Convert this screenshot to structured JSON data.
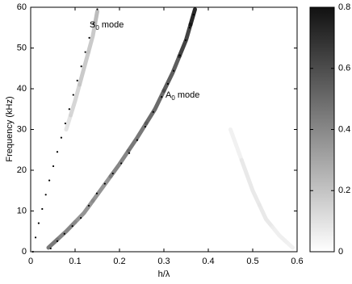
{
  "chart_data": {
    "type": "image",
    "xlabel": "h/λ",
    "ylabel": "Frequency (kHz)",
    "xlim": [
      0,
      0.6
    ],
    "ylim": [
      0,
      60
    ],
    "xticks": [
      0,
      0.1,
      0.2,
      0.3,
      0.4,
      0.5,
      0.6
    ],
    "yticks": [
      0,
      10,
      20,
      30,
      40,
      50,
      60
    ],
    "colormap": [
      "#ffffff",
      "#111111"
    ],
    "clim": [
      0,
      0.8
    ],
    "cticks": [
      0,
      0.2,
      0.4,
      0.6,
      0.8
    ],
    "ridges": [
      {
        "x": [
          0.04,
          0.08,
          0.12,
          0.16,
          0.2,
          0.24,
          0.28,
          0.32,
          0.35,
          0.37
        ],
        "y": [
          1,
          5,
          9.5,
          15.5,
          21.5,
          28,
          35,
          44,
          52,
          59.5
        ],
        "intensity": [
          0.5,
          0.45,
          0.4,
          0.4,
          0.45,
          0.5,
          0.55,
          0.6,
          0.7,
          0.8
        ]
      },
      {
        "x": [
          0.08,
          0.1,
          0.12,
          0.14,
          0.15
        ],
        "y": [
          30,
          37,
          45,
          53,
          59
        ],
        "intensity": [
          0.1,
          0.15,
          0.2,
          0.2,
          0.25
        ]
      },
      {
        "x": [
          0.45,
          0.5,
          0.53,
          0.56,
          0.59
        ],
        "y": [
          30,
          15,
          8,
          4,
          1
        ],
        "intensity": [
          0.05,
          0.08,
          0.08,
          0.06,
          0.05
        ]
      }
    ],
    "series": [
      {
        "color": "#000000",
        "x": [
          0.005,
          0.011,
          0.018,
          0.026,
          0.034,
          0.042,
          0.051,
          0.06,
          0.069,
          0.078,
          0.087,
          0.096,
          0.105,
          0.114,
          0.123,
          0.132,
          0.141,
          0.15
        ],
        "values": [
          0,
          3.5,
          7,
          10.5,
          14,
          17.5,
          21,
          24.5,
          28,
          31.5,
          35,
          38.5,
          42,
          45.5,
          49,
          52.5,
          56,
          59.5
        ]
      },
      {
        "color": "#000000",
        "x": [
          0.045,
          0.06,
          0.076,
          0.094,
          0.113,
          0.131,
          0.149,
          0.167,
          0.185,
          0.204,
          0.222,
          0.24,
          0.258,
          0.276,
          0.295,
          0.309,
          0.322,
          0.336,
          0.349,
          0.358,
          0.367
        ],
        "values": [
          0.8,
          2.6,
          4.4,
          6.3,
          8.3,
          11.3,
          14.3,
          16.7,
          19.2,
          21.7,
          24.2,
          27.4,
          30.7,
          34.3,
          38,
          41.2,
          44.4,
          48.2,
          51.9,
          55,
          58.2
        ]
      }
    ],
    "annotations": [
      {
        "text": "S",
        "subscript": "0",
        "after": " mode"
      },
      {
        "text": "A",
        "subscript": "0",
        "after": " mode"
      }
    ]
  }
}
